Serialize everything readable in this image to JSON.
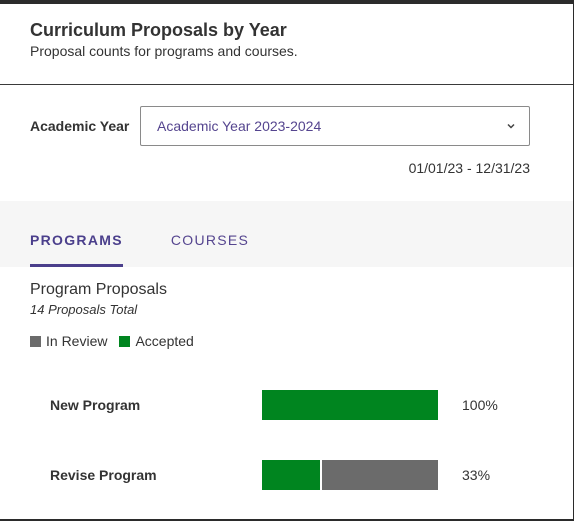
{
  "header": {
    "title": "Curriculum Proposals by Year",
    "subtitle": "Proposal counts for programs and courses."
  },
  "filter": {
    "label": "Academic Year",
    "selected": "Academic Year 2023-2024",
    "date_range": "01/01/23 - 12/31/23"
  },
  "tabs": [
    {
      "label": "PROGRAMS",
      "active": true
    },
    {
      "label": "COURSES",
      "active": false
    }
  ],
  "section": {
    "title": "Program Proposals",
    "total": "14 Proposals Total"
  },
  "legend": [
    {
      "label": "In Review",
      "color": "#6b6b6b"
    },
    {
      "label": "Accepted",
      "color": "#00851f"
    }
  ],
  "chart_data": {
    "type": "bar",
    "categories": [
      "New Program",
      "Revise Program"
    ],
    "series": [
      {
        "name": "Accepted",
        "values": [
          100,
          33
        ]
      },
      {
        "name": "In Review",
        "values": [
          0,
          67
        ]
      }
    ],
    "value_labels": [
      "100%",
      "33%"
    ],
    "stacked": true,
    "orientation": "horizontal",
    "xlim": [
      0,
      100
    ],
    "legend_position": "top-left"
  }
}
